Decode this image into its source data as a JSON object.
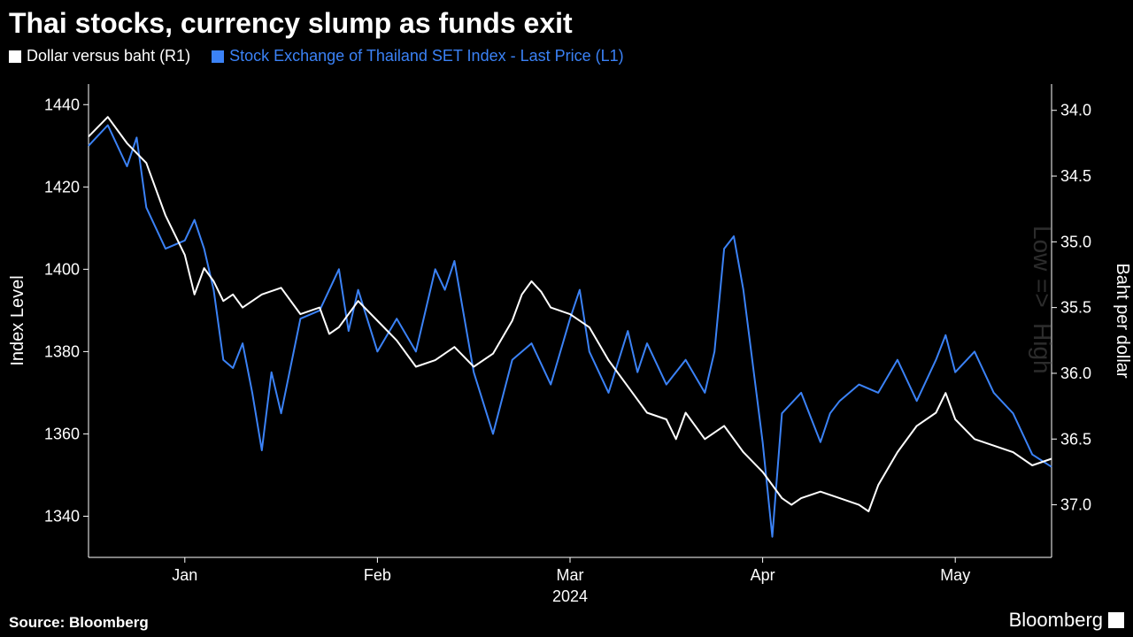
{
  "title": "Thai stocks, currency slump as funds exit",
  "legend": {
    "series1": {
      "label": "Dollar versus baht (R1)",
      "color": "#ffffff"
    },
    "series2": {
      "label": "Stock Exchange of Thailand SET Index - Last Price (L1)",
      "color": "#3b82f6"
    }
  },
  "chart": {
    "type": "line",
    "background_color": "#000000",
    "line_width": 2,
    "left_axis": {
      "label": "Index Level",
      "min": 1330,
      "max": 1445,
      "ticks": [
        1340,
        1360,
        1380,
        1400,
        1420,
        1440
      ],
      "color": "#ffffff",
      "fontsize": 18
    },
    "right_axis": {
      "label": "Baht per dollar",
      "min": 33.8,
      "max": 37.4,
      "inverted": true,
      "ticks": [
        34.0,
        34.5,
        35.0,
        35.5,
        36.0,
        36.5,
        37.0
      ],
      "color": "#ffffff",
      "fontsize": 18
    },
    "x_axis": {
      "label": "2024",
      "ticks": [
        "Jan",
        "Feb",
        "Mar",
        "Apr",
        "May"
      ],
      "tick_positions": [
        0.1,
        0.3,
        0.5,
        0.7,
        0.9
      ],
      "color": "#ffffff",
      "fontsize": 18
    },
    "grid_color": "none",
    "axis_line_color": "#ffffff",
    "series": {
      "dollar_baht_r1": {
        "color": "#ffffff",
        "axis": "right",
        "data": [
          [
            0.0,
            34.2
          ],
          [
            0.02,
            34.05
          ],
          [
            0.04,
            34.25
          ],
          [
            0.06,
            34.4
          ],
          [
            0.08,
            34.8
          ],
          [
            0.1,
            35.1
          ],
          [
            0.11,
            35.4
          ],
          [
            0.12,
            35.2
          ],
          [
            0.13,
            35.3
          ],
          [
            0.14,
            35.45
          ],
          [
            0.15,
            35.4
          ],
          [
            0.16,
            35.5
          ],
          [
            0.17,
            35.45
          ],
          [
            0.18,
            35.4
          ],
          [
            0.2,
            35.35
          ],
          [
            0.22,
            35.55
          ],
          [
            0.24,
            35.5
          ],
          [
            0.25,
            35.7
          ],
          [
            0.26,
            35.65
          ],
          [
            0.28,
            35.45
          ],
          [
            0.3,
            35.6
          ],
          [
            0.32,
            35.75
          ],
          [
            0.34,
            35.95
          ],
          [
            0.36,
            35.9
          ],
          [
            0.38,
            35.8
          ],
          [
            0.4,
            35.95
          ],
          [
            0.42,
            35.85
          ],
          [
            0.44,
            35.6
          ],
          [
            0.45,
            35.4
          ],
          [
            0.46,
            35.3
          ],
          [
            0.47,
            35.38
          ],
          [
            0.48,
            35.5
          ],
          [
            0.5,
            35.55
          ],
          [
            0.52,
            35.65
          ],
          [
            0.54,
            35.9
          ],
          [
            0.56,
            36.1
          ],
          [
            0.58,
            36.3
          ],
          [
            0.6,
            36.35
          ],
          [
            0.61,
            36.5
          ],
          [
            0.62,
            36.3
          ],
          [
            0.64,
            36.5
          ],
          [
            0.66,
            36.4
          ],
          [
            0.68,
            36.6
          ],
          [
            0.7,
            36.75
          ],
          [
            0.72,
            36.95
          ],
          [
            0.73,
            37.0
          ],
          [
            0.74,
            36.95
          ],
          [
            0.76,
            36.9
          ],
          [
            0.78,
            36.95
          ],
          [
            0.8,
            37.0
          ],
          [
            0.81,
            37.05
          ],
          [
            0.82,
            36.85
          ],
          [
            0.84,
            36.6
          ],
          [
            0.86,
            36.4
          ],
          [
            0.88,
            36.3
          ],
          [
            0.89,
            36.15
          ],
          [
            0.9,
            36.35
          ],
          [
            0.92,
            36.5
          ],
          [
            0.94,
            36.55
          ],
          [
            0.96,
            36.6
          ],
          [
            0.98,
            36.7
          ],
          [
            1.0,
            36.65
          ]
        ]
      },
      "set_index_l1": {
        "color": "#3b82f6",
        "axis": "left",
        "data": [
          [
            0.0,
            1430
          ],
          [
            0.02,
            1435
          ],
          [
            0.04,
            1425
          ],
          [
            0.05,
            1432
          ],
          [
            0.06,
            1415
          ],
          [
            0.08,
            1405
          ],
          [
            0.1,
            1407
          ],
          [
            0.11,
            1412
          ],
          [
            0.12,
            1405
          ],
          [
            0.13,
            1395
          ],
          [
            0.14,
            1378
          ],
          [
            0.15,
            1376
          ],
          [
            0.16,
            1382
          ],
          [
            0.17,
            1370
          ],
          [
            0.18,
            1356
          ],
          [
            0.19,
            1375
          ],
          [
            0.2,
            1365
          ],
          [
            0.22,
            1388
          ],
          [
            0.24,
            1390
          ],
          [
            0.26,
            1400
          ],
          [
            0.27,
            1385
          ],
          [
            0.28,
            1395
          ],
          [
            0.3,
            1380
          ],
          [
            0.32,
            1388
          ],
          [
            0.34,
            1380
          ],
          [
            0.36,
            1400
          ],
          [
            0.37,
            1395
          ],
          [
            0.38,
            1402
          ],
          [
            0.4,
            1375
          ],
          [
            0.42,
            1360
          ],
          [
            0.44,
            1378
          ],
          [
            0.46,
            1382
          ],
          [
            0.48,
            1372
          ],
          [
            0.5,
            1388
          ],
          [
            0.51,
            1395
          ],
          [
            0.52,
            1380
          ],
          [
            0.54,
            1370
          ],
          [
            0.56,
            1385
          ],
          [
            0.57,
            1375
          ],
          [
            0.58,
            1382
          ],
          [
            0.6,
            1372
          ],
          [
            0.62,
            1378
          ],
          [
            0.64,
            1370
          ],
          [
            0.65,
            1380
          ],
          [
            0.66,
            1405
          ],
          [
            0.67,
            1408
          ],
          [
            0.68,
            1395
          ],
          [
            0.7,
            1358
          ],
          [
            0.71,
            1335
          ],
          [
            0.72,
            1365
          ],
          [
            0.74,
            1370
          ],
          [
            0.76,
            1358
          ],
          [
            0.77,
            1365
          ],
          [
            0.78,
            1368
          ],
          [
            0.8,
            1372
          ],
          [
            0.82,
            1370
          ],
          [
            0.84,
            1378
          ],
          [
            0.86,
            1368
          ],
          [
            0.88,
            1378
          ],
          [
            0.89,
            1384
          ],
          [
            0.9,
            1375
          ],
          [
            0.92,
            1380
          ],
          [
            0.94,
            1370
          ],
          [
            0.96,
            1365
          ],
          [
            0.98,
            1355
          ],
          [
            1.0,
            1352
          ]
        ]
      }
    },
    "watermark": {
      "text_top": "Low",
      "text_mid": "=>",
      "text_bot": "High",
      "color": "#4a4a4a"
    }
  },
  "source": "Source: Bloomberg",
  "brand": "Bloomberg"
}
